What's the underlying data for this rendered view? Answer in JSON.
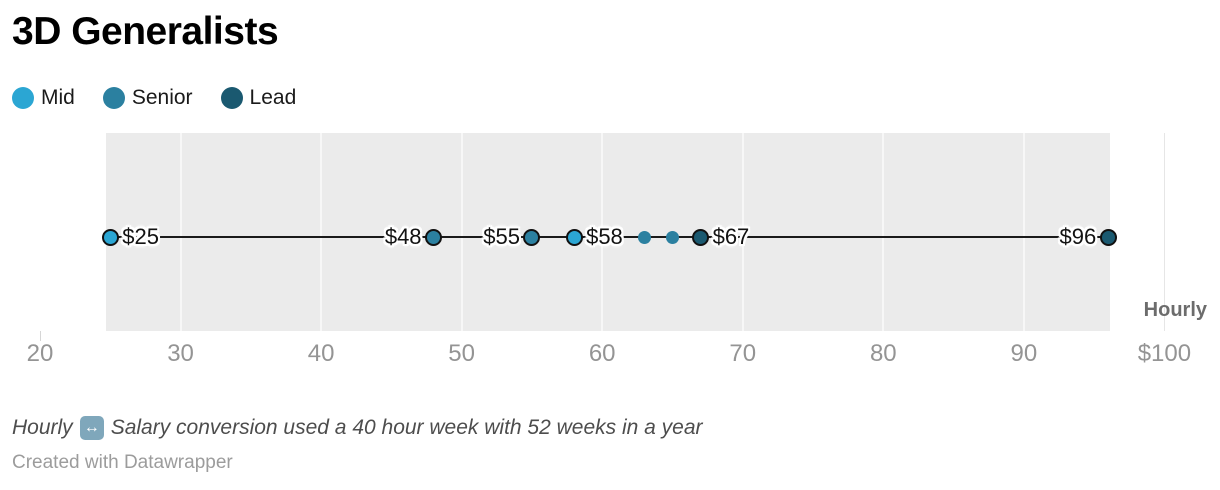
{
  "title": "3D Generalists",
  "chart_data": {
    "type": "scatter",
    "title": "3D Generalists",
    "subtitle": "",
    "unit_label": "Hourly",
    "legend_position": "top-left",
    "grid": true,
    "x_axis": {
      "range": [
        20,
        100
      ],
      "ticks": [
        {
          "value": 20,
          "label": "20"
        },
        {
          "value": 30,
          "label": "30"
        },
        {
          "value": 40,
          "label": "40"
        },
        {
          "value": 50,
          "label": "50"
        },
        {
          "value": 60,
          "label": "60"
        },
        {
          "value": 70,
          "label": "70"
        },
        {
          "value": 80,
          "label": "80"
        },
        {
          "value": 90,
          "label": "90"
        },
        {
          "value": 100,
          "label": "$100"
        }
      ],
      "gridlines_inner": [
        30,
        40,
        50,
        60,
        70,
        80,
        90
      ],
      "gridlines_outer": [
        100
      ]
    },
    "legend": [
      {
        "label": "Mid",
        "color": "#2ba6d3"
      },
      {
        "label": "Senior",
        "color": "#2b80a0"
      },
      {
        "label": "Lead",
        "color": "#1a5970"
      }
    ],
    "series": [
      {
        "name": "Mid",
        "values": [
          25,
          58
        ]
      },
      {
        "name": "Senior",
        "values": [
          48,
          55,
          63,
          65
        ]
      },
      {
        "name": "Lead",
        "values": [
          67,
          96
        ]
      }
    ],
    "points": [
      {
        "value": 25,
        "label": "$25",
        "series": "Mid",
        "label_side": "right",
        "small": false
      },
      {
        "value": 48,
        "label": "$48",
        "series": "Senior",
        "label_side": "left",
        "small": false
      },
      {
        "value": 55,
        "label": "$55",
        "series": "Senior",
        "label_side": "left",
        "small": false
      },
      {
        "value": 58,
        "label": "$58",
        "series": "Mid",
        "label_side": "right",
        "small": false
      },
      {
        "value": 63,
        "label": "",
        "series": "Senior",
        "label_side": "none",
        "small": true
      },
      {
        "value": 65,
        "label": "",
        "series": "Senior",
        "label_side": "none",
        "small": true
      },
      {
        "value": 67,
        "label": "$67",
        "series": "Lead",
        "label_side": "right",
        "small": false
      },
      {
        "value": 96,
        "label": "$96",
        "series": "Lead",
        "label_side": "left",
        "small": false
      }
    ],
    "range_line": {
      "from": 25,
      "to": 96
    }
  },
  "footer": {
    "note_prefix": "Hourly",
    "note_icon": "↔",
    "note_suffix": "Salary conversion used a 40 hour week with 52 weeks in a year",
    "credit": "Created with Datawrapper"
  }
}
